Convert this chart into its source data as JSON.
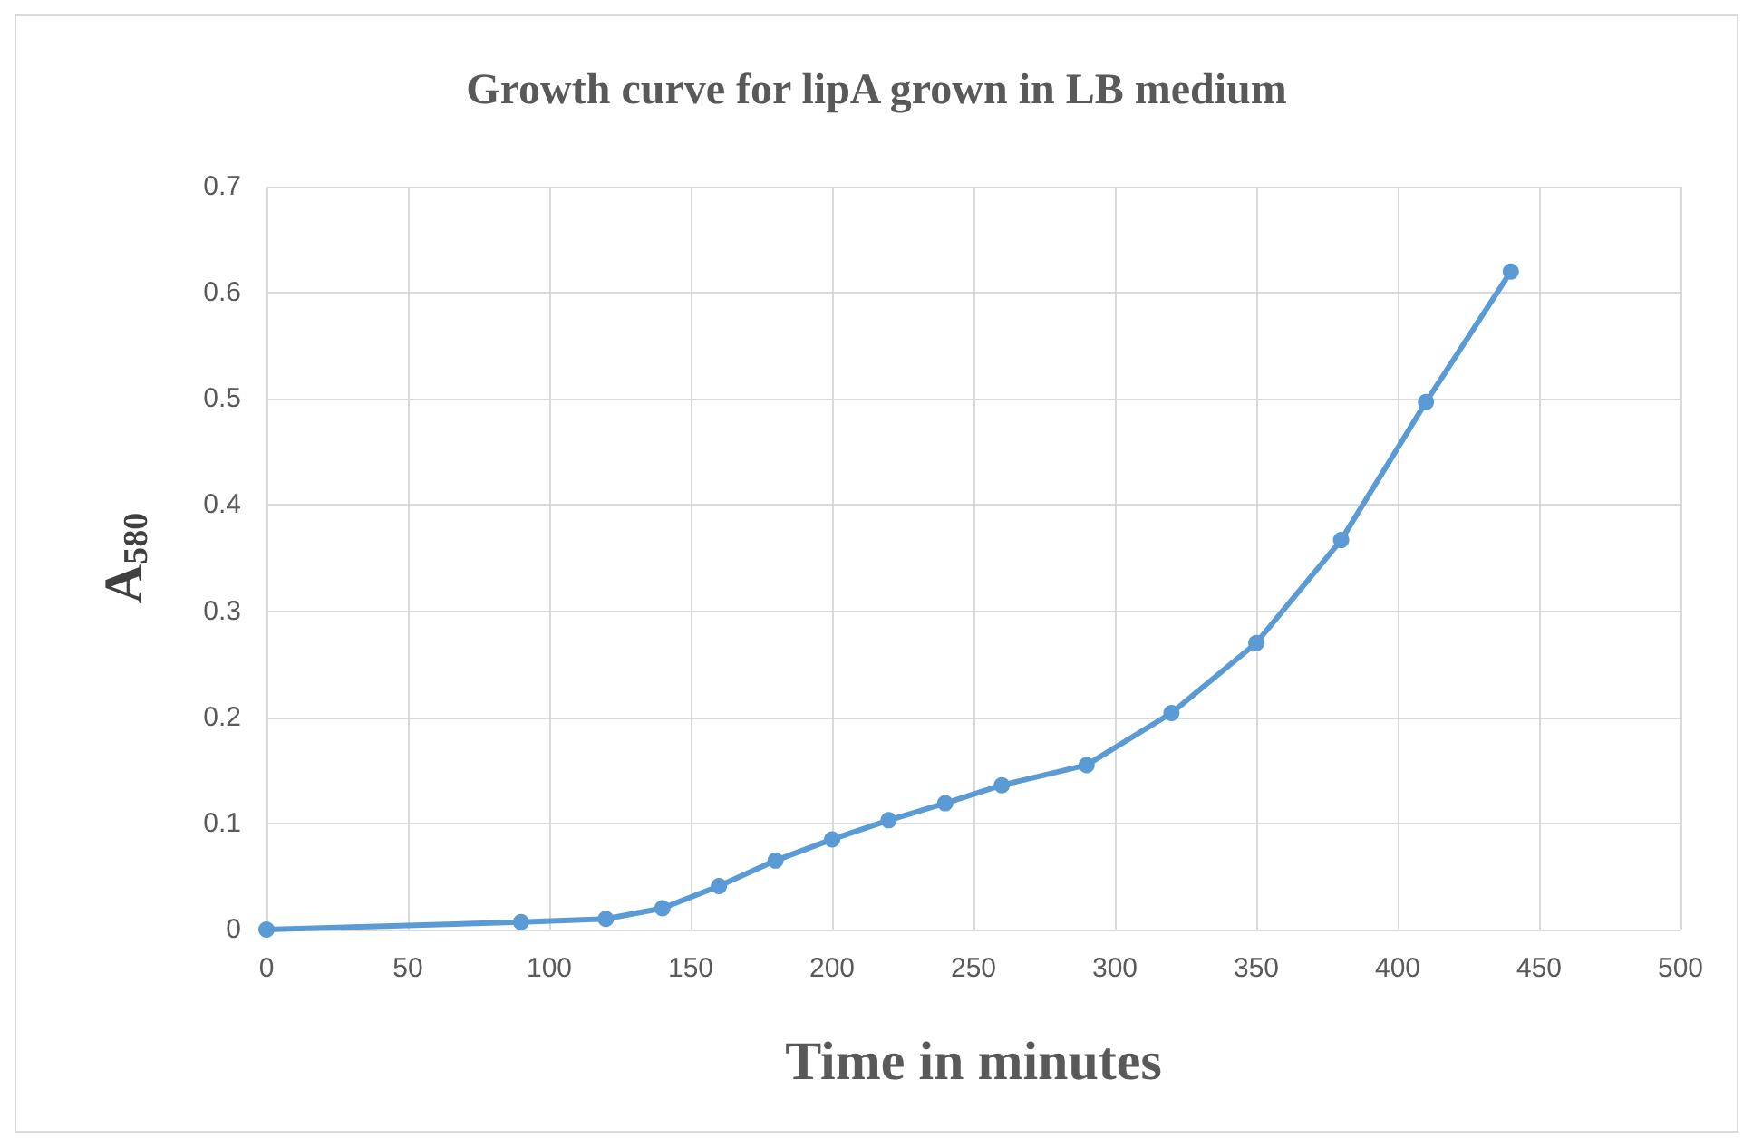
{
  "chart_data": {
    "type": "line",
    "title": "Growth curve for lipA grown in LB medium",
    "xlabel": "Time in minutes",
    "ylabel": "A$_{580}$",
    "x": [
      0,
      90,
      120,
      140,
      160,
      180,
      200,
      220,
      240,
      260,
      290,
      320,
      350,
      380,
      410,
      440
    ],
    "series": [
      {
        "color": "#5b9bd5",
        "values": [
          0,
          0.007,
          0.01,
          0.02,
          0.041,
          0.065,
          0.085,
          0.103,
          0.119,
          0.136,
          0.155,
          0.204,
          0.27,
          0.367,
          0.497,
          0.62
        ]
      }
    ],
    "xlim": [
      0,
      500
    ],
    "xticks": [
      0,
      50,
      100,
      150,
      200,
      250,
      300,
      350,
      400,
      450,
      500
    ],
    "ylim": [
      0,
      0.7
    ],
    "yticks": [
      0,
      0.1,
      0.2,
      0.3,
      0.4,
      0.5,
      0.6,
      0.7
    ],
    "grid": true,
    "marker": "circle",
    "line_style": "solid"
  }
}
